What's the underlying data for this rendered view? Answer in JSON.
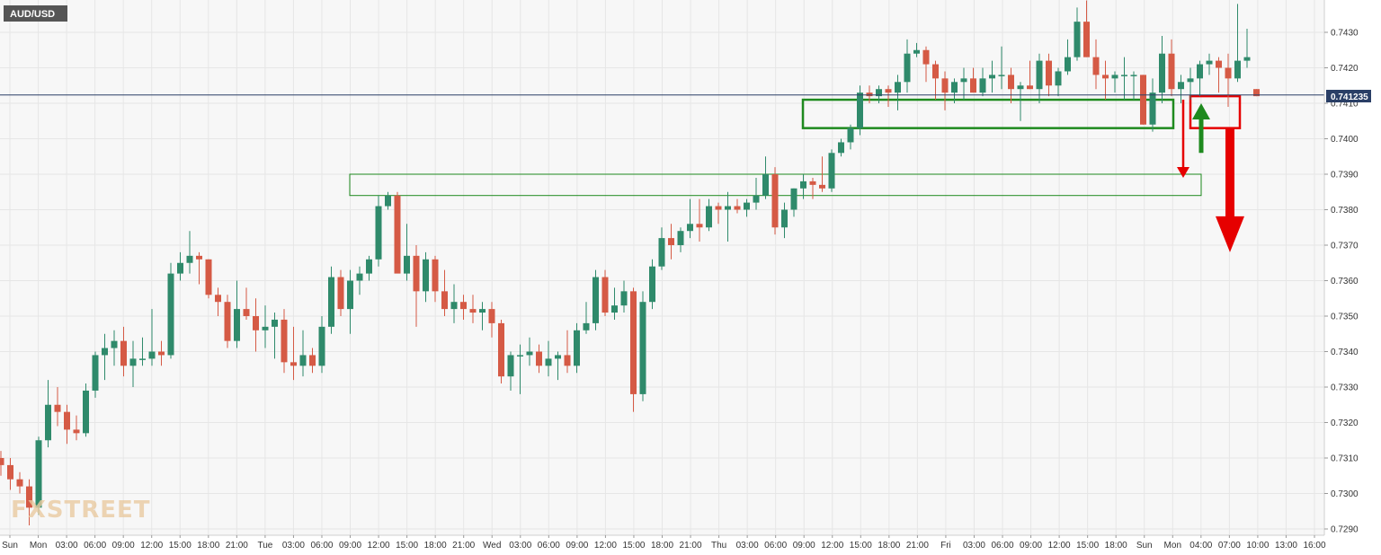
{
  "symbol": "AUD/USD",
  "watermark": "FXSTREET",
  "current_price_label": "0.741235",
  "colors": {
    "background": "#f7f7f7",
    "grid": "#e6e6e6",
    "up": "#2f8a6b",
    "down": "#d55a45",
    "zone_green": "#1e8a1e",
    "zone_red": "#e60000",
    "price_line": "#2a3f66",
    "symbol_bg": "#555555"
  },
  "chart_data": {
    "type": "candlestick",
    "title": "AUD/USD",
    "timeframe_hours": 1,
    "ylim": [
      0.7288,
      0.7438
    ],
    "y_ticks": [
      "0.7290",
      "0.7300",
      "0.7310",
      "0.7320",
      "0.7330",
      "0.7340",
      "0.7350",
      "0.7360",
      "0.7370",
      "0.7380",
      "0.7390",
      "0.7400",
      "0.7410",
      "0.7420",
      "0.7430"
    ],
    "x_ticks": [
      "Sun",
      "Mon",
      "03:00",
      "06:00",
      "09:00",
      "12:00",
      "15:00",
      "18:00",
      "21:00",
      "Tue",
      "03:00",
      "06:00",
      "09:00",
      "12:00",
      "15:00",
      "18:00",
      "21:00",
      "Wed",
      "03:00",
      "06:00",
      "09:00",
      "12:00",
      "15:00",
      "18:00",
      "21:00",
      "Thu",
      "03:00",
      "06:00",
      "09:00",
      "12:00",
      "15:00",
      "18:00",
      "21:00",
      "Fri",
      "03:00",
      "06:00",
      "09:00",
      "12:00",
      "15:00",
      "18:00",
      "Sun",
      "Mon",
      "04:00",
      "07:00",
      "10:00",
      "13:00",
      "16:00"
    ],
    "current_price": 0.741235,
    "grid": true,
    "legend": "none",
    "candles": [
      [
        0.731,
        0.7312,
        0.7305,
        0.7308
      ],
      [
        0.7308,
        0.731,
        0.7301,
        0.7304
      ],
      [
        0.7304,
        0.7306,
        0.73,
        0.7302
      ],
      [
        0.7302,
        0.7304,
        0.7291,
        0.7296
      ],
      [
        0.7296,
        0.7316,
        0.7294,
        0.7315
      ],
      [
        0.7315,
        0.7332,
        0.7313,
        0.7325
      ],
      [
        0.7325,
        0.733,
        0.7319,
        0.7323
      ],
      [
        0.7323,
        0.7325,
        0.7314,
        0.7318
      ],
      [
        0.7318,
        0.7322,
        0.7315,
        0.7317
      ],
      [
        0.7317,
        0.7331,
        0.7316,
        0.7329
      ],
      [
        0.7329,
        0.734,
        0.7327,
        0.7339
      ],
      [
        0.7339,
        0.7345,
        0.7332,
        0.7341
      ],
      [
        0.7341,
        0.7346,
        0.7336,
        0.7343
      ],
      [
        0.7343,
        0.7347,
        0.7333,
        0.7336
      ],
      [
        0.7336,
        0.7343,
        0.733,
        0.7338
      ],
      [
        0.7338,
        0.7344,
        0.7336,
        0.7338
      ],
      [
        0.7338,
        0.7352,
        0.7336,
        0.734
      ],
      [
        0.734,
        0.7343,
        0.7336,
        0.7339
      ],
      [
        0.7339,
        0.7365,
        0.7338,
        0.7362
      ],
      [
        0.7362,
        0.7368,
        0.736,
        0.7365
      ],
      [
        0.7365,
        0.7374,
        0.7362,
        0.7367
      ],
      [
        0.7367,
        0.7368,
        0.7359,
        0.7366
      ],
      [
        0.7366,
        0.7366,
        0.7355,
        0.7356
      ],
      [
        0.7356,
        0.7358,
        0.735,
        0.7354
      ],
      [
        0.7354,
        0.7356,
        0.7341,
        0.7343
      ],
      [
        0.7343,
        0.736,
        0.7341,
        0.7352
      ],
      [
        0.7352,
        0.7358,
        0.7349,
        0.735
      ],
      [
        0.735,
        0.7355,
        0.734,
        0.7346
      ],
      [
        0.7346,
        0.7353,
        0.7341,
        0.7347
      ],
      [
        0.7347,
        0.7351,
        0.7338,
        0.7349
      ],
      [
        0.7349,
        0.7352,
        0.7334,
        0.7337
      ],
      [
        0.7337,
        0.7347,
        0.7332,
        0.7336
      ],
      [
        0.7336,
        0.7346,
        0.7333,
        0.7339
      ],
      [
        0.7339,
        0.7341,
        0.7334,
        0.7336
      ],
      [
        0.7336,
        0.735,
        0.7334,
        0.7347
      ],
      [
        0.7347,
        0.7364,
        0.7345,
        0.7361
      ],
      [
        0.7361,
        0.7363,
        0.735,
        0.7352
      ],
      [
        0.7352,
        0.7363,
        0.7345,
        0.736
      ],
      [
        0.736,
        0.7364,
        0.7356,
        0.7362
      ],
      [
        0.7362,
        0.7367,
        0.736,
        0.7366
      ],
      [
        0.7366,
        0.7384,
        0.7364,
        0.7381
      ],
      [
        0.7381,
        0.7385,
        0.738,
        0.7384
      ],
      [
        0.7384,
        0.7385,
        0.7363,
        0.7362
      ],
      [
        0.7362,
        0.7376,
        0.736,
        0.7367
      ],
      [
        0.7367,
        0.737,
        0.7347,
        0.7357
      ],
      [
        0.7357,
        0.7368,
        0.7354,
        0.7366
      ],
      [
        0.7366,
        0.7367,
        0.7354,
        0.7357
      ],
      [
        0.7357,
        0.7363,
        0.735,
        0.7352
      ],
      [
        0.7352,
        0.7359,
        0.7348,
        0.7354
      ],
      [
        0.7354,
        0.7356,
        0.7349,
        0.7352
      ],
      [
        0.7352,
        0.7356,
        0.7348,
        0.7351
      ],
      [
        0.7351,
        0.7354,
        0.7346,
        0.7352
      ],
      [
        0.7352,
        0.7354,
        0.7344,
        0.7348
      ],
      [
        0.7348,
        0.7349,
        0.7331,
        0.7333
      ],
      [
        0.7333,
        0.734,
        0.7329,
        0.7339
      ],
      [
        0.7339,
        0.7342,
        0.7328,
        0.7339
      ],
      [
        0.7339,
        0.7344,
        0.7336,
        0.734
      ],
      [
        0.734,
        0.7342,
        0.7334,
        0.7336
      ],
      [
        0.7336,
        0.7343,
        0.7333,
        0.7338
      ],
      [
        0.7338,
        0.734,
        0.7332,
        0.7339
      ],
      [
        0.7339,
        0.7346,
        0.7334,
        0.7336
      ],
      [
        0.7336,
        0.7348,
        0.7334,
        0.7346
      ],
      [
        0.7346,
        0.7354,
        0.7345,
        0.7348
      ],
      [
        0.7348,
        0.7363,
        0.7346,
        0.7361
      ],
      [
        0.7361,
        0.7363,
        0.735,
        0.7351
      ],
      [
        0.7351,
        0.7358,
        0.7349,
        0.7353
      ],
      [
        0.7353,
        0.736,
        0.7351,
        0.7357
      ],
      [
        0.7357,
        0.7358,
        0.7323,
        0.7328
      ],
      [
        0.7328,
        0.7357,
        0.7326,
        0.7354
      ],
      [
        0.7354,
        0.7366,
        0.7352,
        0.7364
      ],
      [
        0.7364,
        0.7375,
        0.7363,
        0.7372
      ],
      [
        0.7372,
        0.7376,
        0.7366,
        0.737
      ],
      [
        0.737,
        0.7375,
        0.7368,
        0.7374
      ],
      [
        0.7374,
        0.7383,
        0.7372,
        0.7376
      ],
      [
        0.7376,
        0.7383,
        0.7371,
        0.7375
      ],
      [
        0.7375,
        0.7383,
        0.7374,
        0.7381
      ],
      [
        0.7381,
        0.7382,
        0.7376,
        0.738
      ],
      [
        0.738,
        0.7385,
        0.7371,
        0.7381
      ],
      [
        0.7381,
        0.7383,
        0.7379,
        0.738
      ],
      [
        0.738,
        0.7383,
        0.7378,
        0.7382
      ],
      [
        0.7382,
        0.7389,
        0.738,
        0.7384
      ],
      [
        0.7384,
        0.7395,
        0.7383,
        0.739
      ],
      [
        0.739,
        0.7392,
        0.7373,
        0.7375
      ],
      [
        0.7375,
        0.7382,
        0.7372,
        0.738
      ],
      [
        0.738,
        0.7386,
        0.7378,
        0.7386
      ],
      [
        0.7386,
        0.739,
        0.7383,
        0.7388
      ],
      [
        0.7388,
        0.7389,
        0.7383,
        0.7387
      ],
      [
        0.7387,
        0.7395,
        0.7385,
        0.7386
      ],
      [
        0.7386,
        0.7397,
        0.7385,
        0.7396
      ],
      [
        0.7396,
        0.74,
        0.7395,
        0.7399
      ],
      [
        0.7399,
        0.7404,
        0.7397,
        0.7403
      ],
      [
        0.7403,
        0.7415,
        0.7401,
        0.7413
      ],
      [
        0.7413,
        0.7415,
        0.741,
        0.7412
      ],
      [
        0.7412,
        0.7415,
        0.741,
        0.7414
      ],
      [
        0.7414,
        0.7415,
        0.7409,
        0.7413
      ],
      [
        0.7413,
        0.7418,
        0.7408,
        0.7416
      ],
      [
        0.7416,
        0.7428,
        0.7413,
        0.7424
      ],
      [
        0.7424,
        0.7427,
        0.7423,
        0.7425
      ],
      [
        0.7425,
        0.7426,
        0.7416,
        0.7421
      ],
      [
        0.7421,
        0.7422,
        0.7411,
        0.7417
      ],
      [
        0.7417,
        0.7419,
        0.7408,
        0.7413
      ],
      [
        0.7413,
        0.7417,
        0.741,
        0.7416
      ],
      [
        0.7416,
        0.742,
        0.7411,
        0.7417
      ],
      [
        0.7417,
        0.742,
        0.7413,
        0.7413
      ],
      [
        0.7413,
        0.742,
        0.7412,
        0.7417
      ],
      [
        0.7417,
        0.7422,
        0.7413,
        0.7418
      ],
      [
        0.7418,
        0.7426,
        0.7414,
        0.7418
      ],
      [
        0.7418,
        0.742,
        0.741,
        0.7414
      ],
      [
        0.7414,
        0.7416,
        0.7405,
        0.7415
      ],
      [
        0.7415,
        0.7422,
        0.7414,
        0.7414
      ],
      [
        0.7414,
        0.7424,
        0.741,
        0.7422
      ],
      [
        0.7422,
        0.7424,
        0.7412,
        0.7415
      ],
      [
        0.7415,
        0.742,
        0.7412,
        0.7419
      ],
      [
        0.7419,
        0.7428,
        0.7418,
        0.7423
      ],
      [
        0.7423,
        0.7437,
        0.7422,
        0.7433
      ],
      [
        0.7433,
        0.7439,
        0.7423,
        0.7423
      ],
      [
        0.7423,
        0.7428,
        0.7414,
        0.7418
      ],
      [
        0.7418,
        0.7422,
        0.7411,
        0.7417
      ],
      [
        0.7417,
        0.7419,
        0.7413,
        0.7418
      ],
      [
        0.7418,
        0.7423,
        0.7411,
        0.7418
      ],
      [
        0.7418,
        0.7419,
        0.7411,
        0.7418
      ],
      [
        0.7418,
        0.7418,
        0.7404,
        0.7404
      ],
      [
        0.7404,
        0.7417,
        0.7402,
        0.7413
      ],
      [
        0.7413,
        0.7429,
        0.741,
        0.7424
      ],
      [
        0.7424,
        0.7428,
        0.7412,
        0.7414
      ],
      [
        0.7414,
        0.7418,
        0.741,
        0.7416
      ],
      [
        0.7416,
        0.742,
        0.7411,
        0.7417
      ],
      [
        0.7417,
        0.7422,
        0.7412,
        0.7421
      ],
      [
        0.7421,
        0.7424,
        0.7418,
        0.7422
      ],
      [
        0.7422,
        0.7423,
        0.7413,
        0.742
      ],
      [
        0.742,
        0.7424,
        0.7409,
        0.7417
      ],
      [
        0.7417,
        0.7438,
        0.7416,
        0.7422
      ],
      [
        0.7422,
        0.7431,
        0.742,
        0.7423
      ],
      [
        0.7414,
        0.7414,
        0.7412,
        0.7412
      ]
    ],
    "annotations": [
      {
        "type": "zone",
        "color": "green",
        "y_low": 0.7403,
        "y_high": 0.7411
      },
      {
        "type": "zone",
        "color": "green",
        "y_low": 0.7384,
        "y_high": 0.739
      },
      {
        "type": "zone",
        "color": "red",
        "y_low": 0.7403,
        "y_high": 0.7412
      },
      {
        "type": "arrow",
        "color": "red",
        "direction": "down",
        "from": 0.7411,
        "to": 0.7389
      },
      {
        "type": "arrow",
        "color": "green",
        "direction": "up",
        "from": 0.7396,
        "to": 0.741
      },
      {
        "type": "arrow",
        "color": "red",
        "direction": "down",
        "from": 0.7403,
        "to": 0.7368
      }
    ]
  }
}
